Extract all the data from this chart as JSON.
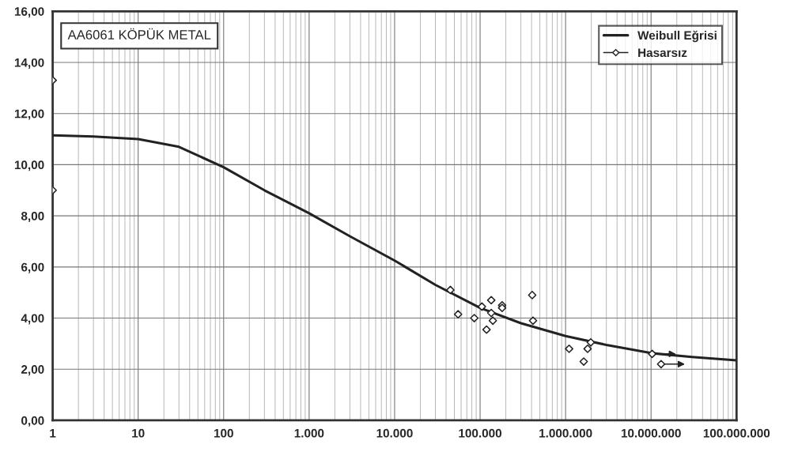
{
  "chart_data": {
    "type": "scatter",
    "log": "x",
    "grid": true,
    "legend": "top right",
    "xlim": [
      1,
      100000000
    ],
    "ylim": [
      0,
      16
    ],
    "xticks": [
      1,
      10,
      100,
      {
        "value": 1000,
        "label": "1.000"
      },
      {
        "value": 10000,
        "label": "10.000"
      },
      {
        "value": 100000,
        "label": "100.000"
      },
      {
        "value": 1000000,
        "label": "1.000.000"
      },
      {
        "value": 10000000,
        "label": "10.000.000"
      },
      {
        "value": 100000000,
        "label": "100.000.000"
      }
    ],
    "yticks": [
      {
        "value": 0,
        "label": "0,00"
      },
      {
        "value": 2,
        "label": "2,00"
      },
      {
        "value": 4,
        "label": "4,00"
      },
      {
        "value": 6,
        "label": "6,00"
      },
      {
        "value": 8,
        "label": "8,00"
      },
      {
        "value": 10,
        "label": "10,00"
      },
      {
        "value": 12,
        "label": "12,00"
      },
      {
        "value": 14,
        "label": "14,00"
      },
      {
        "value": 16,
        "label": "16,00"
      }
    ],
    "annotations": [
      "AA6061 KÖPÜK METAL"
    ],
    "series": [
      {
        "name": "Weibull Eğrisi",
        "type": "line",
        "color": "#222222",
        "marker": "none",
        "line_style": "solid",
        "x": [
          1,
          3,
          10,
          30,
          100,
          300,
          1000,
          3000,
          10000,
          30000,
          100000,
          300000,
          1000000,
          3000000,
          10000000,
          30000000,
          100000000
        ],
        "values": [
          11.15,
          11.1,
          11.0,
          10.7,
          9.9,
          9.0,
          8.1,
          7.2,
          6.25,
          5.3,
          4.4,
          3.8,
          3.3,
          2.95,
          2.63,
          2.48,
          2.35
        ]
      },
      {
        "color": "#222222",
        "marker": "diamond",
        "x": [
          1,
          1,
          44900,
          55300,
          85500,
          105000,
          135000,
          119000,
          135000,
          141000,
          181000,
          181000,
          407000,
          416000,
          1100000,
          1810000,
          1970000,
          1630000
        ],
        "values": [
          13.3,
          9.0,
          5.1,
          4.15,
          4.0,
          4.45,
          4.7,
          3.55,
          4.2,
          3.9,
          4.5,
          4.4,
          4.9,
          3.9,
          2.8,
          2.8,
          3.05,
          2.3
        ]
      },
      {
        "name": "Hasarsız",
        "type": "scatter",
        "color": "#222222",
        "marker": "diamond",
        "x": [
          10300000,
          13100000
        ],
        "values": [
          2.6,
          2.2
        ]
      }
    ]
  }
}
